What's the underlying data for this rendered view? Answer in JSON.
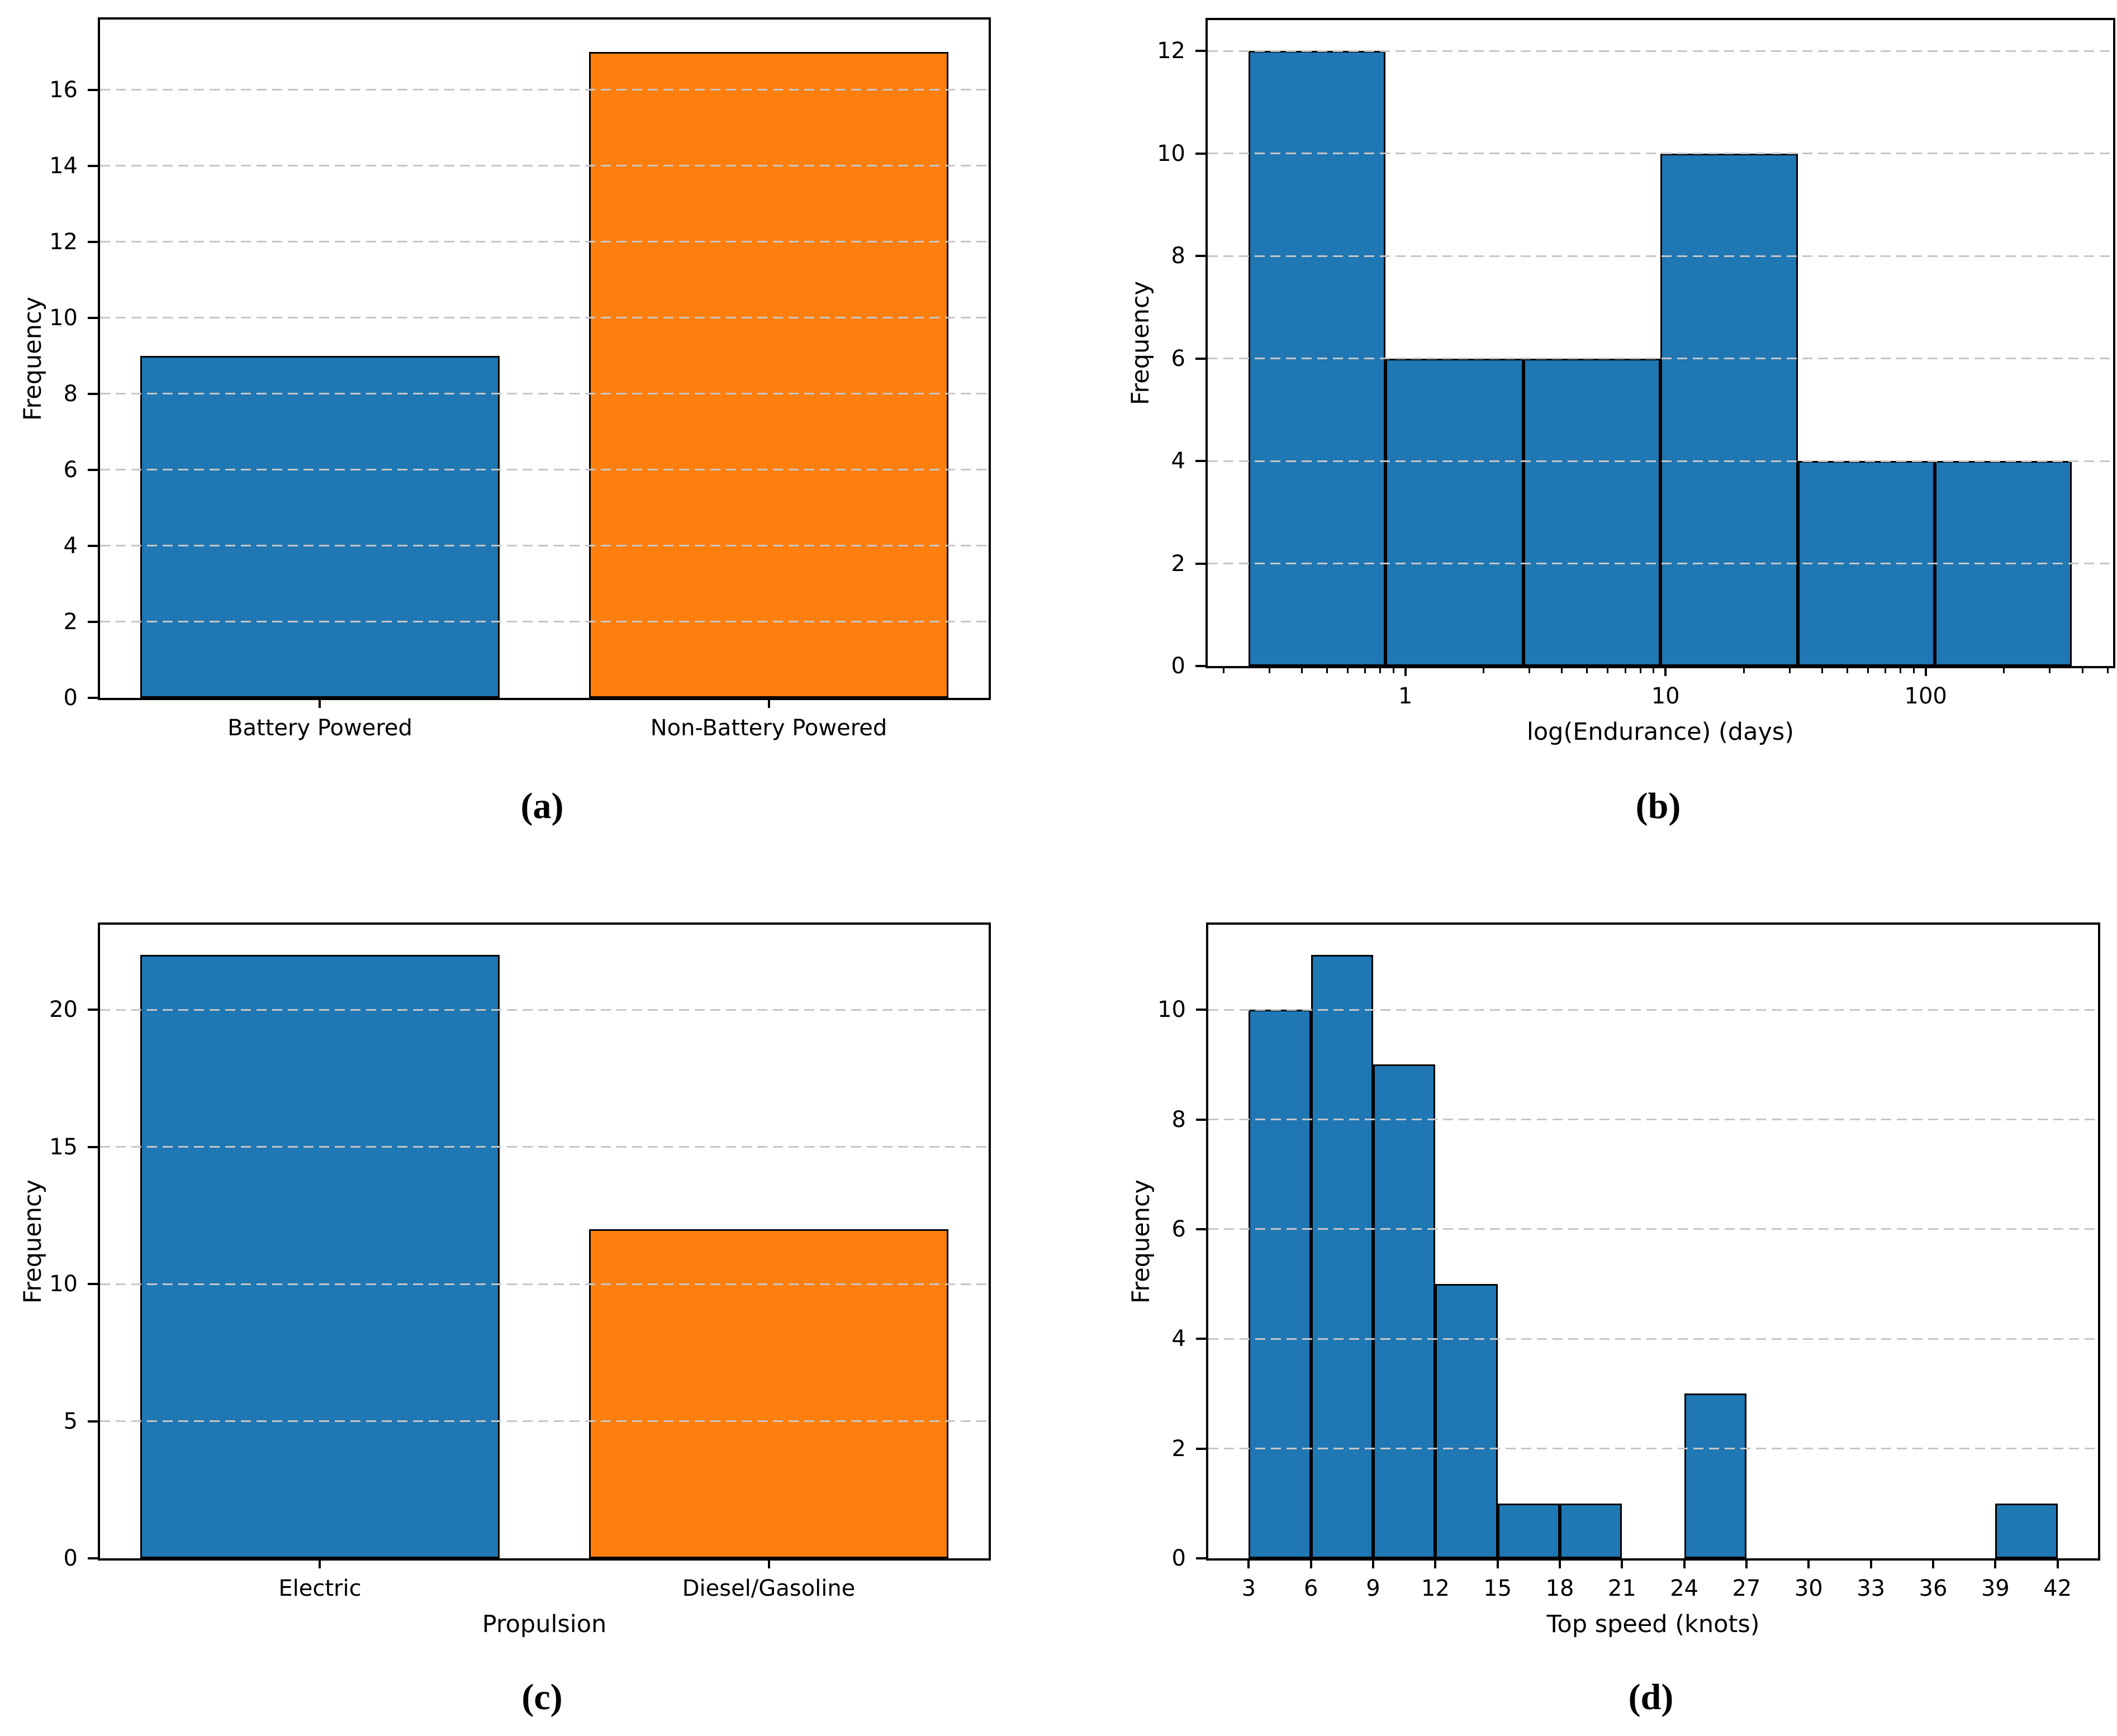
{
  "figure": {
    "colors": {
      "bar_blue": "#1f77b4",
      "bar_orange": "#ff7f0e",
      "grid": "#c6c6c6",
      "edge": "#000000",
      "background": "#ffffff"
    }
  },
  "chart_data": [
    {
      "id": "a",
      "type": "bar",
      "caption": "(a)",
      "title": "",
      "xlabel": "",
      "ylabel": "Frequency",
      "categories": [
        "Battery Powered",
        "Non-Battery Powered"
      ],
      "values": [
        9,
        17
      ],
      "bar_colors": [
        "#1f77b4",
        "#ff7f0e"
      ],
      "bar_width": 0.8,
      "xlim": [
        -0.49,
        1.49
      ],
      "ylim": [
        0,
        17.85
      ],
      "yticks": [
        0,
        2,
        4,
        6,
        8,
        10,
        12,
        14,
        16
      ],
      "grid": "dashed horizontal at y ticks",
      "legend": "none"
    },
    {
      "id": "b",
      "type": "histogram",
      "x_scale": "log",
      "caption": "(b)",
      "title": "",
      "xlabel": "log(Endurance) (days)",
      "ylabel": "Frequency",
      "bin_edges_days": [
        0.25,
        0.84,
        2.84,
        9.55,
        32.2,
        108.4,
        365
      ],
      "counts": [
        12,
        6,
        6,
        10,
        4,
        4
      ],
      "bar_color": "#1f77b4",
      "xlim": [
        0.174,
        525
      ],
      "ylim": [
        0,
        12.6
      ],
      "xticks": [
        1,
        10,
        100
      ],
      "xtick_labels": [
        "1",
        "10",
        "100"
      ],
      "minor_xticks": [
        0.2,
        0.3,
        0.4,
        0.5,
        0.6,
        0.7,
        0.8,
        0.9,
        2,
        3,
        4,
        5,
        6,
        7,
        8,
        9,
        20,
        30,
        40,
        50,
        60,
        70,
        80,
        90,
        200,
        300,
        400,
        500
      ],
      "yticks": [
        0,
        2,
        4,
        6,
        8,
        10,
        12
      ],
      "grid": "dashed horizontal at y ticks",
      "legend": "none"
    },
    {
      "id": "c",
      "type": "bar",
      "caption": "(c)",
      "title": "",
      "xlabel": "Propulsion",
      "ylabel": "Frequency",
      "categories": [
        "Electric",
        "Diesel/Gasoline"
      ],
      "values": [
        22,
        12
      ],
      "bar_colors": [
        "#1f77b4",
        "#ff7f0e"
      ],
      "bar_width": 0.8,
      "xlim": [
        -0.49,
        1.49
      ],
      "ylim": [
        0,
        23.1
      ],
      "yticks": [
        0,
        5,
        10,
        15,
        20
      ],
      "grid": "dashed horizontal at y ticks",
      "legend": "none"
    },
    {
      "id": "d",
      "type": "histogram",
      "x_scale": "linear",
      "caption": "(d)",
      "title": "",
      "xlabel": "Top speed (knots)",
      "ylabel": "Frequency",
      "bin_edges_knots": [
        3,
        6,
        9,
        12,
        15,
        18,
        21,
        24,
        27,
        30,
        33,
        36,
        39,
        42
      ],
      "counts": [
        10,
        11,
        9,
        5,
        1,
        1,
        0,
        3,
        0,
        0,
        0,
        0,
        1
      ],
      "bar_color": "#1f77b4",
      "xlim": [
        1.05,
        43.95
      ],
      "ylim": [
        0,
        11.55
      ],
      "xticks": [
        3,
        6,
        9,
        12,
        15,
        18,
        21,
        24,
        27,
        30,
        33,
        36,
        39,
        42
      ],
      "yticks": [
        0,
        2,
        4,
        6,
        8,
        10
      ],
      "grid": "dashed horizontal at y ticks",
      "legend": "none"
    }
  ]
}
